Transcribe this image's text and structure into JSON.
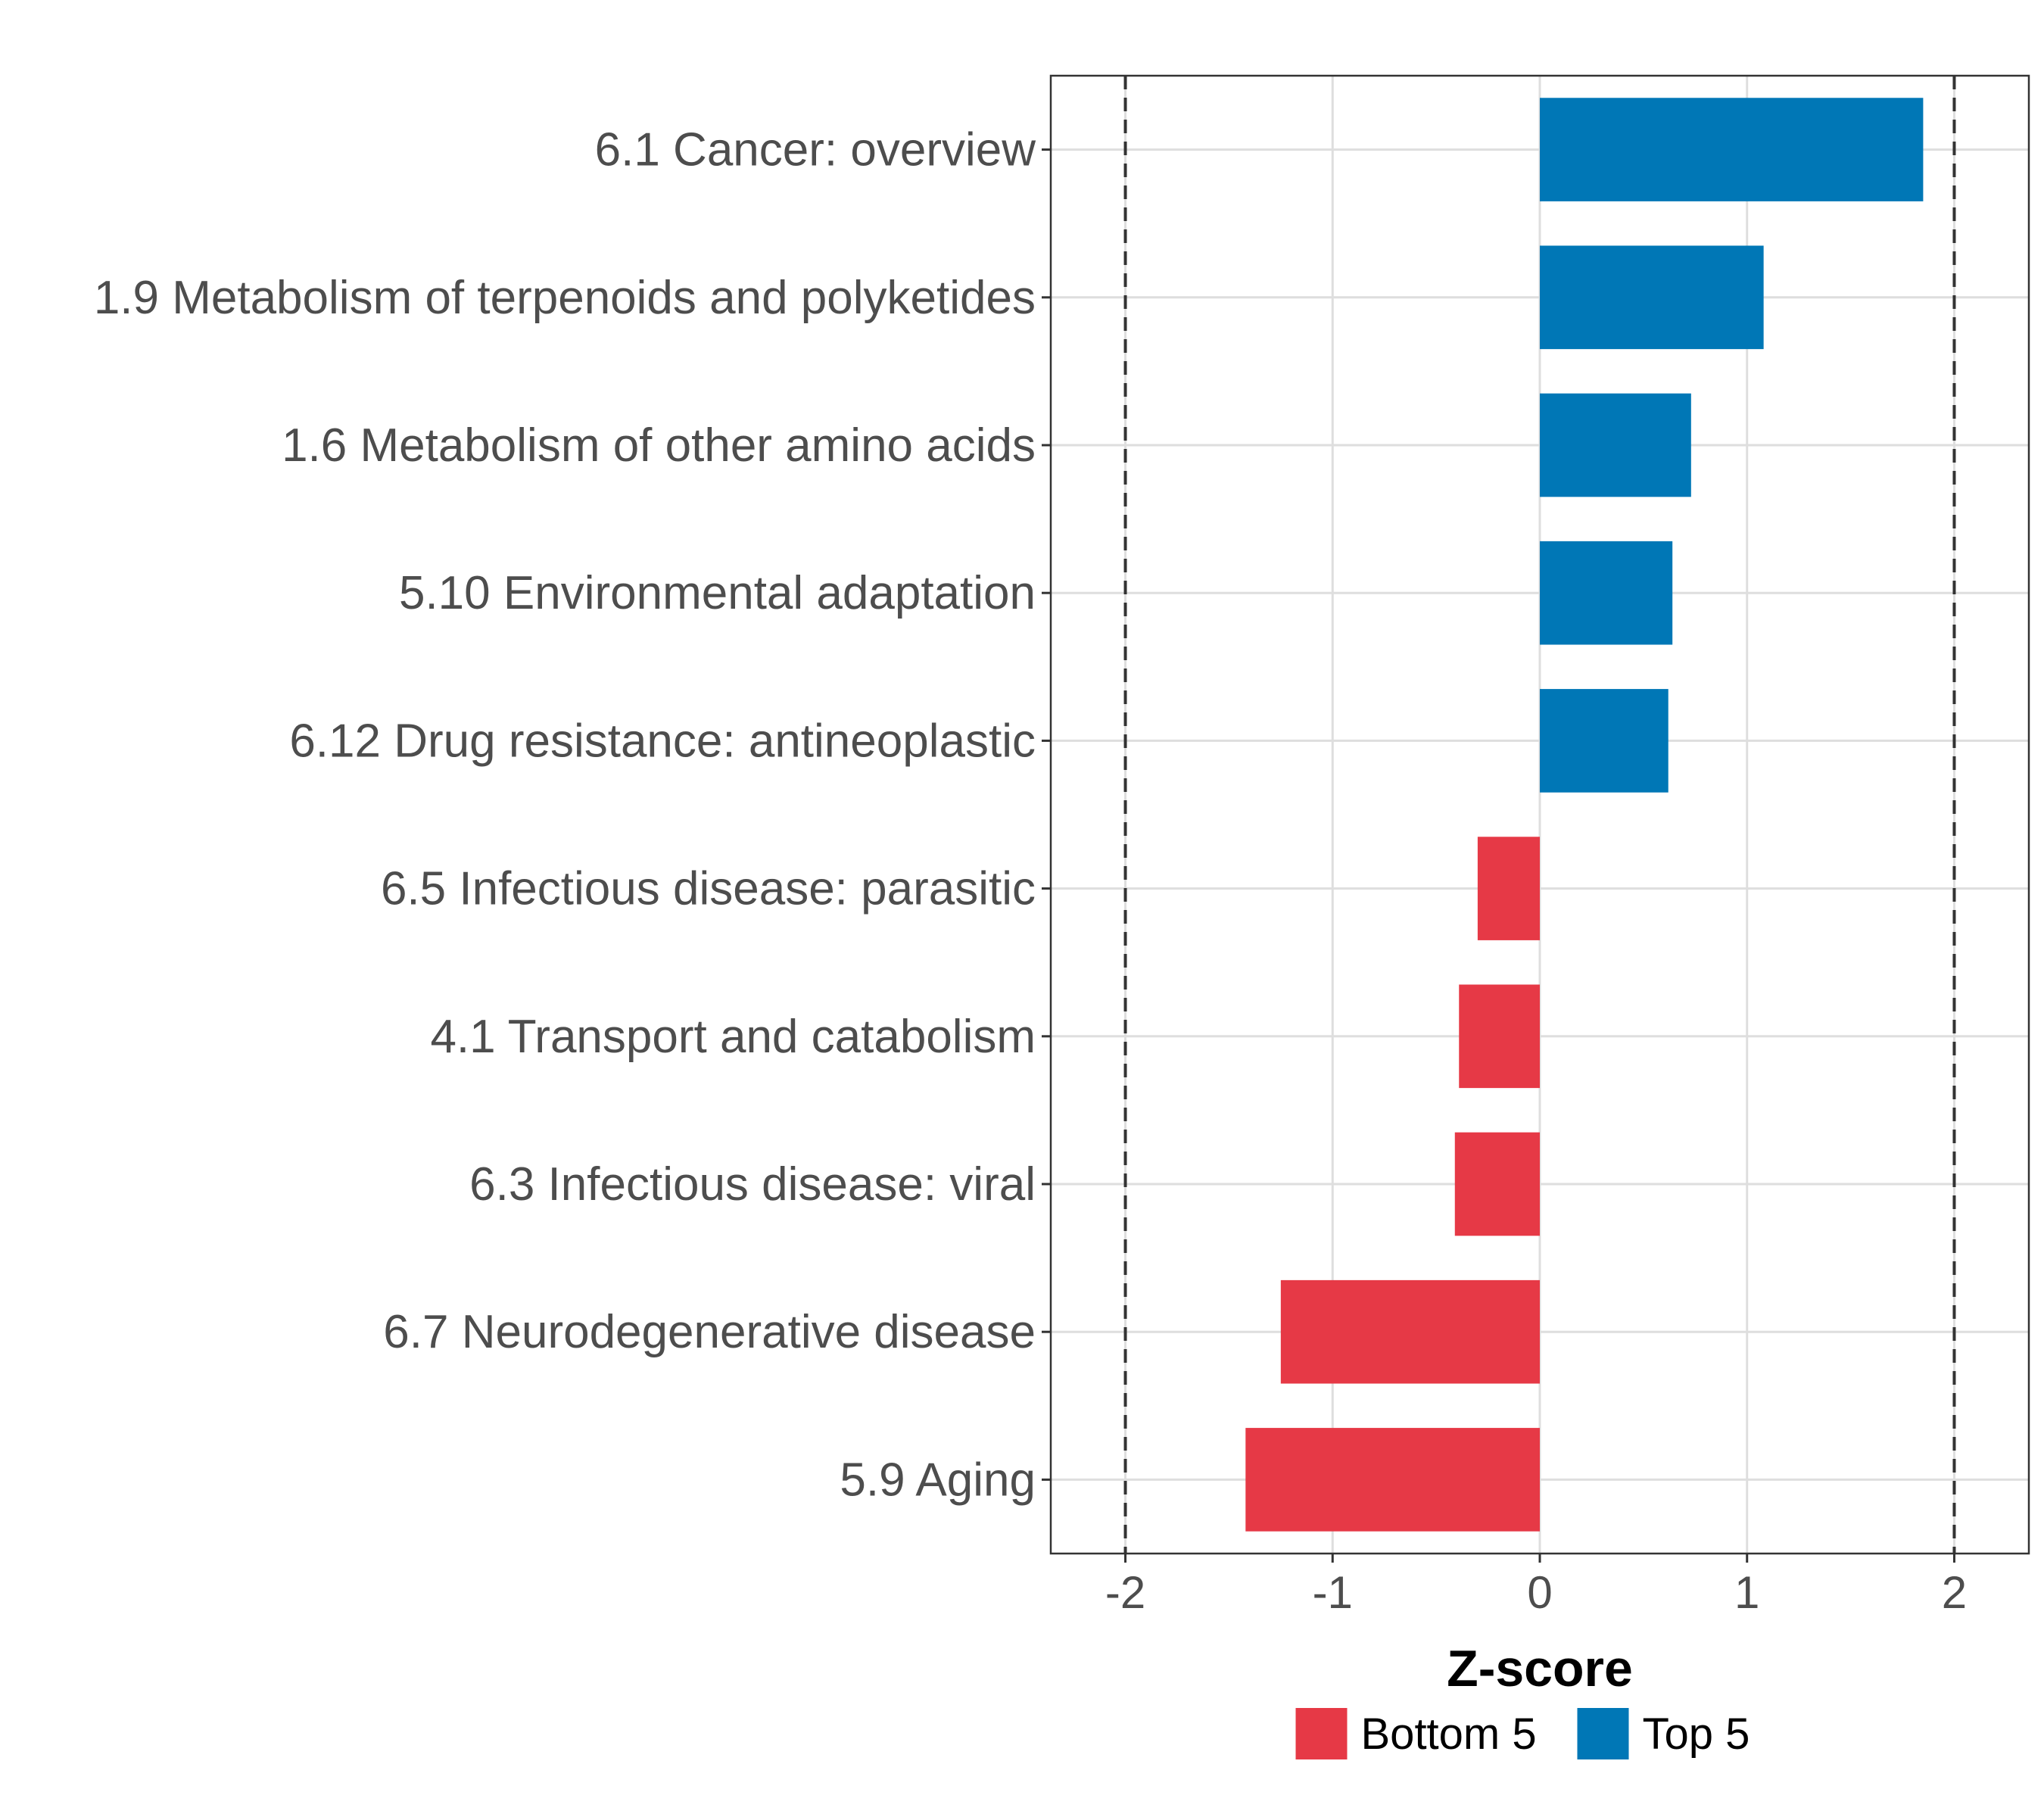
{
  "chart_data": {
    "type": "bar",
    "orientation": "horizontal",
    "xlabel": "Z-score",
    "ylabel": "",
    "xlim": [
      -2.36,
      2.36
    ],
    "xticks": [
      -2,
      -1,
      0,
      1,
      2
    ],
    "xtick_labels": [
      "-2",
      "-1",
      "0",
      "1",
      "2"
    ],
    "reference_lines": [
      -2,
      2
    ],
    "grid": true,
    "legend_position": "bottom",
    "categories": [
      "6.1 Cancer: overview",
      "1.9 Metabolism of terpenoids and polyketides",
      "1.6 Metabolism of other amino acids",
      "5.10 Environmental adaptation",
      "6.12 Drug resistance: antineoplastic",
      "6.5 Infectious disease: parasitic",
      "4.1 Transport and catabolism",
      "6.3 Infectious disease: viral",
      "6.7 Neurodegenerative disease",
      "5.9 Aging"
    ],
    "values": [
      1.85,
      1.08,
      0.73,
      0.64,
      0.62,
      -0.3,
      -0.39,
      -0.41,
      -1.25,
      -1.42
    ],
    "groups": [
      "Top 5",
      "Top 5",
      "Top 5",
      "Top 5",
      "Top 5",
      "Bottom 5",
      "Bottom 5",
      "Bottom 5",
      "Bottom 5",
      "Bottom 5"
    ],
    "legend": [
      {
        "name": "Bottom 5",
        "color": "#e63946"
      },
      {
        "name": "Top 5",
        "color": "#0077b6"
      }
    ]
  }
}
